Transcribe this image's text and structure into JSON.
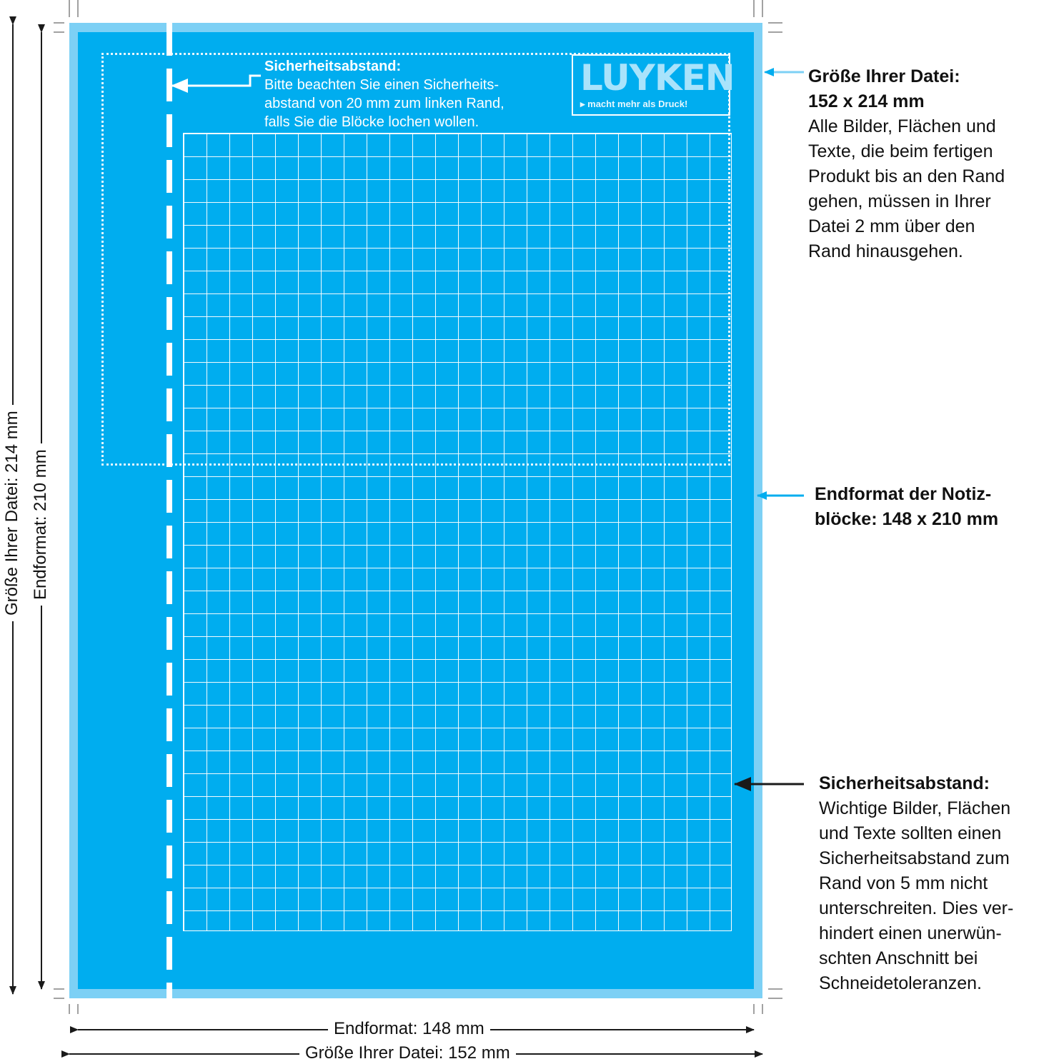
{
  "logo": {
    "brand": "LUYKEN",
    "tagline": "▸ macht mehr als Druck!"
  },
  "inner_note": {
    "heading": "Sicherheitsabstand:",
    "lines": [
      "Bitte beachten Sie einen Sicherheits-",
      "abstand von 20 mm zum linken Rand,",
      "falls Sie die Blöcke lochen wollen."
    ]
  },
  "file_size_note": {
    "heading_1": "Größe Ihrer Datei:",
    "heading_2": "152 x 214 mm",
    "lines": [
      "Alle Bilder, Flächen und",
      "Texte, die beim fertigen",
      "Produkt bis an den Rand",
      "gehen, müssen in Ihrer",
      "Datei 2 mm über den",
      "Rand hinausgehen."
    ]
  },
  "endformat_note": {
    "line_1": "Endformat der Notiz-",
    "line_2": "blöcke: 148 x 210 mm"
  },
  "safety_note": {
    "heading": "Sicherheitsabstand:",
    "lines": [
      "Wichtige Bilder, Flächen",
      "und Texte sollten einen",
      "Sicherheitsabstand zum",
      "Rand von 5 mm nicht",
      "unterschreiten. Dies ver-",
      "hindert einen unerwün-",
      "schten Anschnitt bei",
      "Schneidetoleranzen."
    ]
  },
  "dimensions": {
    "width_trim": "Endformat: 148 mm",
    "width_file": "Größe Ihrer Datei: 152 mm",
    "height_trim": "Endformat: 210 mm",
    "height_file": "Größe Ihrer Datei: 214 mm"
  },
  "colors": {
    "bleed": "#7dd0f5",
    "trim": "#00adef",
    "arrow_light": "#00adef",
    "arrow_dark": "#1a1a1a"
  }
}
